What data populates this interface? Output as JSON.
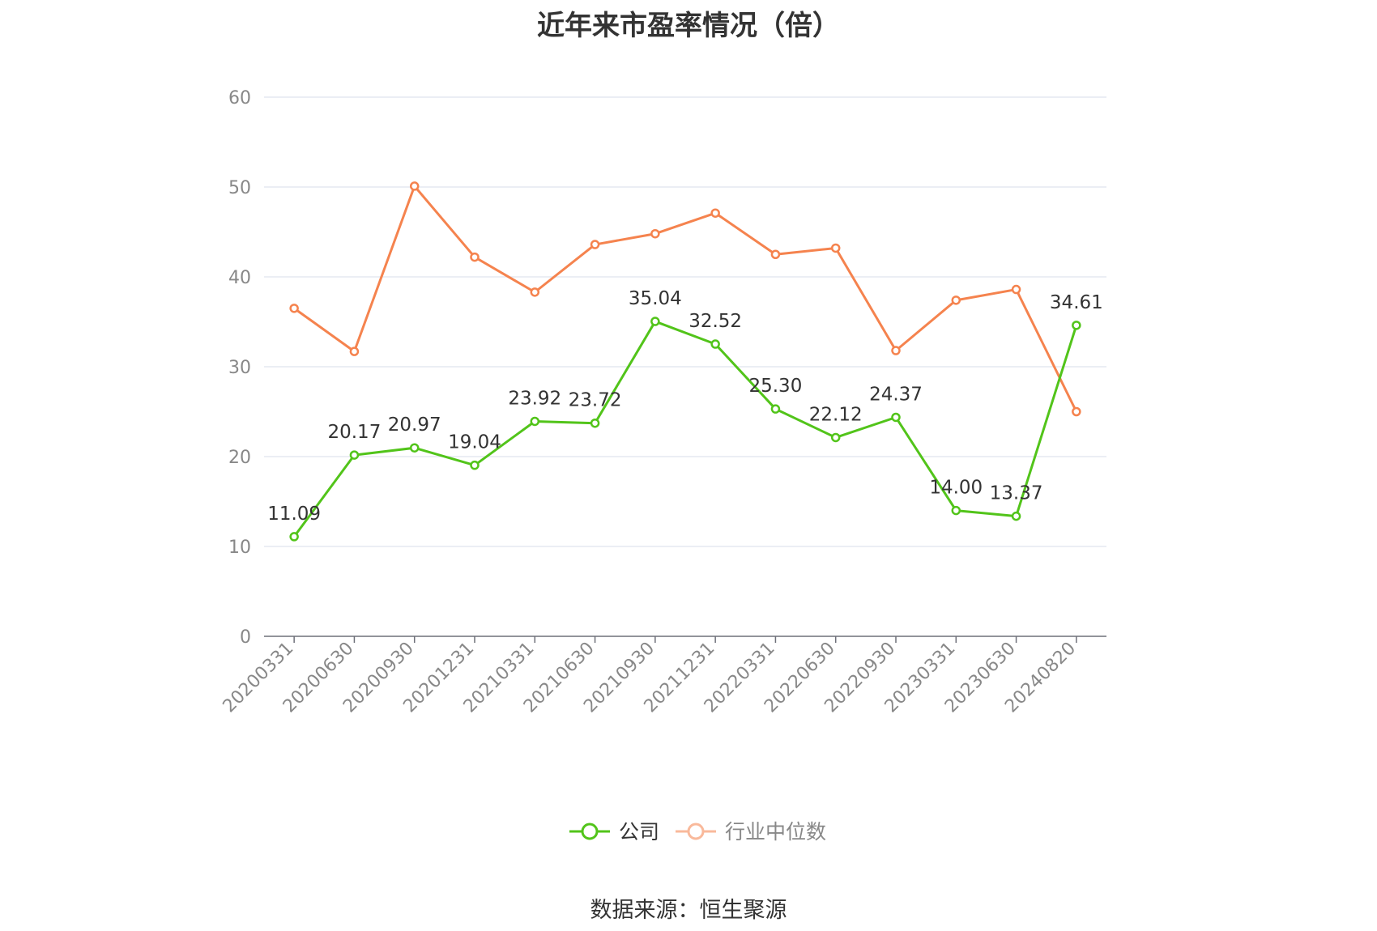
{
  "chart_data": {
    "type": "line",
    "title": "近年来市盈率情况（倍）",
    "xlabel": "",
    "ylabel": "",
    "ylim": [
      0,
      60
    ],
    "yticks": [
      0,
      10,
      20,
      30,
      40,
      50,
      60
    ],
    "grid": true,
    "legend_position": "bottom",
    "categories": [
      "20200331",
      "20200630",
      "20200930",
      "20201231",
      "20210331",
      "20210630",
      "20210930",
      "20211231",
      "20220331",
      "20220630",
      "20220930",
      "20230331",
      "20230630",
      "20240820"
    ],
    "series": [
      {
        "name": "公司",
        "color": "#52c41a",
        "values": [
          11.09,
          20.17,
          20.97,
          19.04,
          23.92,
          23.72,
          35.04,
          32.52,
          25.3,
          22.12,
          24.37,
          14.0,
          13.37,
          34.61
        ],
        "labels": [
          "11.09",
          "20.17",
          "20.97",
          "19.04",
          "23.92",
          "23.72",
          "35.04",
          "32.52",
          "25.30",
          "22.12",
          "24.37",
          "14.00",
          "13.37",
          "34.61"
        ]
      },
      {
        "name": "行业中位数",
        "color": "#f5834e",
        "legend_color": "#f9b99b",
        "values": [
          36.5,
          31.7,
          50.1,
          42.2,
          38.3,
          43.6,
          44.8,
          47.1,
          42.5,
          43.2,
          31.8,
          37.4,
          38.6,
          25.0
        ]
      }
    ]
  },
  "source_text": "数据来源：恒生聚源"
}
